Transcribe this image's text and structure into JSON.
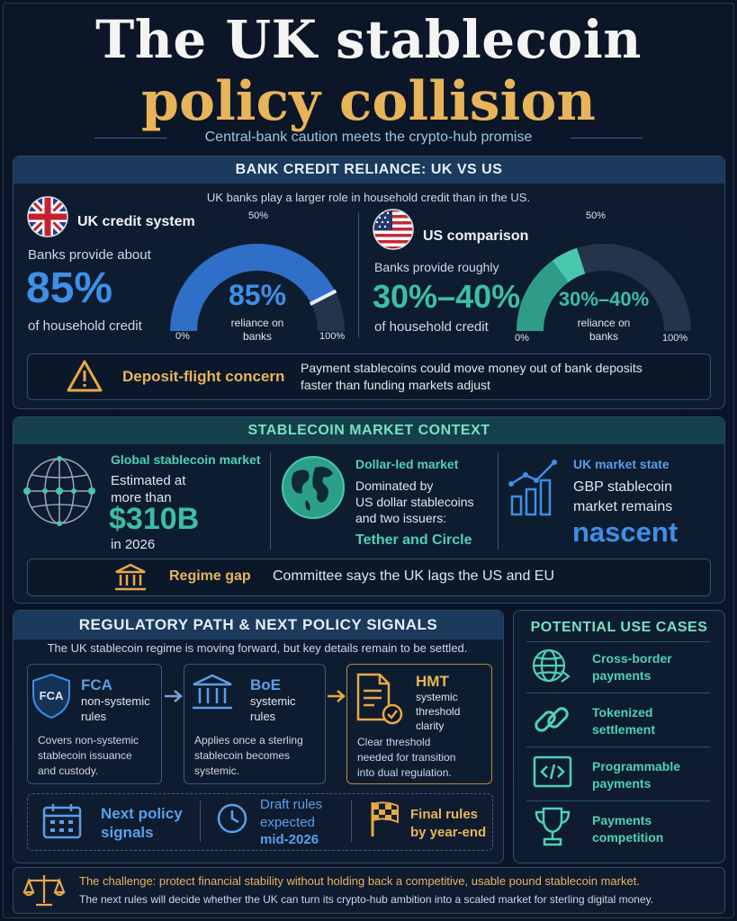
{
  "header": {
    "title_line1": "The UK stablecoin",
    "title_line2": "policy collision",
    "subtitle": "Central-bank caution meets the crypto-hub promise"
  },
  "bank_credit": {
    "heading": "BANK CREDIT RELIANCE: UK VS US",
    "intro": "UK banks play a larger role in household credit than in the US.",
    "uk": {
      "label": "UK credit system",
      "line1": "Banks provide about",
      "big_value": "85%",
      "line2": "of household credit",
      "gauge": {
        "value_fraction": 0.85,
        "center_value": "85%",
        "center_label_1": "reliance on",
        "center_label_2": "banks",
        "min": "0%",
        "mid": "50%",
        "max": "100%"
      }
    },
    "us": {
      "label": "US comparison",
      "line1": "Banks provide roughly",
      "big_value": "30%–40%",
      "line2": "of household credit",
      "gauge": {
        "value_range": [
          0.3,
          0.4
        ],
        "center_value": "30%–40%",
        "center_label_1": "reliance on",
        "center_label_2": "banks",
        "min": "0%",
        "mid": "50%",
        "max": "100%"
      }
    },
    "concern": {
      "title": "Deposit-flight concern",
      "text_1": "Payment stablecoins could move money out of bank deposits",
      "text_2": "faster than funding markets adjust"
    }
  },
  "market": {
    "heading": "STABLECOIN MARKET CONTEXT",
    "global": {
      "title": "Global stablecoin market",
      "l1": "Estimated at",
      "l2": "more than",
      "value": "$310B",
      "l3": "in 2026"
    },
    "dollar": {
      "title": "Dollar-led market",
      "l1": "Dominated by",
      "l2": "US dollar stablecoins",
      "l3": "and two issuers:",
      "highlight": "Tether and Circle"
    },
    "uk_state": {
      "title": "UK market state",
      "l1": "GBP stablecoin",
      "l2": "market remains",
      "value": "nascent"
    },
    "gap": {
      "title": "Regime gap",
      "text": "Committee says the UK lags the US and EU"
    }
  },
  "regulatory": {
    "heading": "REGULATORY PATH & NEXT POLICY SIGNALS",
    "intro": "The UK stablecoin regime is moving forward, but key details remain to be settled.",
    "steps": [
      {
        "icon_text": "FCA",
        "title": "FCA",
        "sub1": "non-systemic",
        "sub2": "rules",
        "sub3": "",
        "d1": "Covers non-systemic",
        "d2": "stablecoin issuance",
        "d3": "and custody."
      },
      {
        "icon_text": "",
        "title": "BoE",
        "sub1": "systemic",
        "sub2": "rules",
        "sub3": "",
        "d1": "Applies once a sterling",
        "d2": "stablecoin becomes",
        "d3": "systemic."
      },
      {
        "icon_text": "",
        "title": "HMT",
        "sub1": "systemic",
        "sub2": "threshold",
        "sub3": "clarity",
        "d1": "Clear threshold",
        "d2": "needed for transition",
        "d3": "into dual regulation."
      }
    ],
    "signals": {
      "label1": "Next policy",
      "label2": "signals",
      "draft1": "Draft rules",
      "draft2": "expected",
      "draft3": "mid-2026",
      "final1": "Final rules",
      "final2": "by year-end"
    }
  },
  "use_cases": {
    "heading": "POTENTIAL USE CASES",
    "items": [
      {
        "icon": "globe-icon",
        "l1": "Cross-border",
        "l2": "payments"
      },
      {
        "icon": "link-icon",
        "l1": "Tokenized",
        "l2": "settlement"
      },
      {
        "icon": "code-icon",
        "l1": "Programmable",
        "l2": "payments"
      },
      {
        "icon": "trophy-icon",
        "l1": "Payments",
        "l2": "competition"
      }
    ]
  },
  "footer": {
    "line1": "The challenge: protect financial stability without holding back a competitive, usable pound stablecoin market.",
    "line2": "The next rules will decide whether the UK can turn its crypto-hub ambition into a scaled market for sterling digital money."
  },
  "colors": {
    "gold": "#e8b45a",
    "blue": "#3e8fe8",
    "teal": "#3bbfa6",
    "background": "#0a1424"
  }
}
